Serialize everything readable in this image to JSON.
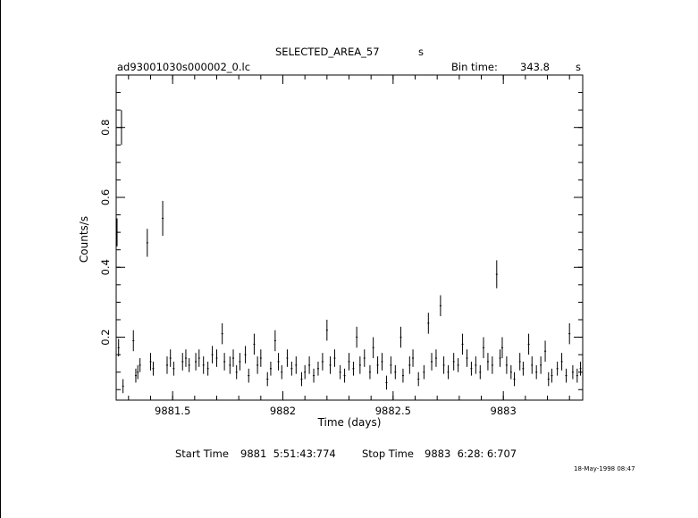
{
  "header": {
    "object": "SELECTED_AREA_57",
    "object_unit": "s",
    "filename": "ad93001030s000002_0.lc",
    "bin_label": "Bin time:",
    "bin_value": "343.8",
    "bin_unit": "s"
  },
  "footer": {
    "start_label": "Start Time",
    "start_value": "9881  5:51:43:774",
    "stop_label": "Stop Time",
    "stop_value": "9883  6:28: 6:707",
    "stamp": "18-May-1998 08:47"
  },
  "chart_data": {
    "type": "scatter",
    "xlabel": "Time (days)",
    "ylabel": "Counts/s",
    "xlim": [
      9881.244,
      9883.36
    ],
    "ylim": [
      0.02,
      0.95
    ],
    "x_ticks": [
      "9881.5",
      "9882",
      "9882.5",
      "9883"
    ],
    "y_ticks": [
      "0.2",
      "0.4",
      "0.6",
      "0.8"
    ],
    "grid": false,
    "series": [
      {
        "error_bars": true,
        "points": [
          [
            9881.248,
            0.5,
            0.04
          ],
          [
            9881.255,
            0.17,
            0.025
          ],
          [
            9881.268,
            0.8,
            0.05
          ],
          [
            9881.275,
            0.06,
            0.02
          ],
          [
            9881.322,
            0.19,
            0.03
          ],
          [
            9881.333,
            0.09,
            0.02
          ],
          [
            9881.342,
            0.1,
            0.02
          ],
          [
            9881.352,
            0.12,
            0.02
          ],
          [
            9881.385,
            0.47,
            0.04
          ],
          [
            9881.4,
            0.13,
            0.025
          ],
          [
            9881.412,
            0.11,
            0.02
          ],
          [
            9881.455,
            0.54,
            0.05
          ],
          [
            9881.475,
            0.12,
            0.025
          ],
          [
            9881.49,
            0.14,
            0.025
          ],
          [
            9881.505,
            0.11,
            0.02
          ],
          [
            9881.545,
            0.13,
            0.025
          ],
          [
            9881.56,
            0.14,
            0.025
          ],
          [
            9881.575,
            0.12,
            0.02
          ],
          [
            9881.605,
            0.13,
            0.025
          ],
          [
            9881.62,
            0.14,
            0.025
          ],
          [
            9881.64,
            0.12,
            0.025
          ],
          [
            9881.66,
            0.11,
            0.02
          ],
          [
            9881.68,
            0.15,
            0.025
          ],
          [
            9881.7,
            0.14,
            0.025
          ],
          [
            9881.725,
            0.21,
            0.03
          ],
          [
            9881.735,
            0.13,
            0.025
          ],
          [
            9881.76,
            0.12,
            0.025
          ],
          [
            9881.775,
            0.14,
            0.025
          ],
          [
            9881.79,
            0.1,
            0.02
          ],
          [
            9881.805,
            0.13,
            0.025
          ],
          [
            9881.83,
            0.15,
            0.025
          ],
          [
            9881.845,
            0.09,
            0.02
          ],
          [
            9881.87,
            0.18,
            0.03
          ],
          [
            9881.885,
            0.12,
            0.025
          ],
          [
            9881.9,
            0.14,
            0.025
          ],
          [
            9881.93,
            0.08,
            0.02
          ],
          [
            9881.945,
            0.11,
            0.02
          ],
          [
            9881.965,
            0.19,
            0.03
          ],
          [
            9881.98,
            0.13,
            0.025
          ],
          [
            9881.995,
            0.1,
            0.02
          ],
          [
            9882.02,
            0.14,
            0.025
          ],
          [
            9882.04,
            0.11,
            0.02
          ],
          [
            9882.06,
            0.12,
            0.025
          ],
          [
            9882.085,
            0.08,
            0.02
          ],
          [
            9882.1,
            0.1,
            0.02
          ],
          [
            9882.12,
            0.12,
            0.025
          ],
          [
            9882.14,
            0.09,
            0.02
          ],
          [
            9882.16,
            0.11,
            0.02
          ],
          [
            9882.18,
            0.13,
            0.025
          ],
          [
            9882.2,
            0.22,
            0.03
          ],
          [
            9882.215,
            0.12,
            0.025
          ],
          [
            9882.235,
            0.14,
            0.025
          ],
          [
            9882.26,
            0.1,
            0.02
          ],
          [
            9882.28,
            0.09,
            0.02
          ],
          [
            9882.3,
            0.13,
            0.025
          ],
          [
            9882.32,
            0.11,
            0.02
          ],
          [
            9882.335,
            0.2,
            0.03
          ],
          [
            9882.35,
            0.12,
            0.025
          ],
          [
            9882.37,
            0.14,
            0.025
          ],
          [
            9882.395,
            0.1,
            0.02
          ],
          [
            9882.41,
            0.17,
            0.03
          ],
          [
            9882.43,
            0.12,
            0.025
          ],
          [
            9882.45,
            0.13,
            0.025
          ],
          [
            9882.47,
            0.07,
            0.02
          ],
          [
            9882.49,
            0.12,
            0.025
          ],
          [
            9882.51,
            0.1,
            0.02
          ],
          [
            9882.535,
            0.2,
            0.03
          ],
          [
            9882.545,
            0.09,
            0.02
          ],
          [
            9882.575,
            0.12,
            0.025
          ],
          [
            9882.59,
            0.14,
            0.025
          ],
          [
            9882.615,
            0.08,
            0.02
          ],
          [
            9882.64,
            0.1,
            0.02
          ],
          [
            9882.66,
            0.24,
            0.03
          ],
          [
            9882.675,
            0.13,
            0.025
          ],
          [
            9882.695,
            0.14,
            0.025
          ],
          [
            9882.715,
            0.29,
            0.03
          ],
          [
            9882.73,
            0.12,
            0.025
          ],
          [
            9882.75,
            0.1,
            0.02
          ],
          [
            9882.775,
            0.13,
            0.025
          ],
          [
            9882.795,
            0.12,
            0.02
          ],
          [
            9882.815,
            0.18,
            0.03
          ],
          [
            9882.835,
            0.14,
            0.025
          ],
          [
            9882.855,
            0.11,
            0.02
          ],
          [
            9882.875,
            0.12,
            0.025
          ],
          [
            9882.895,
            0.1,
            0.02
          ],
          [
            9882.91,
            0.17,
            0.03
          ],
          [
            9882.93,
            0.13,
            0.025
          ],
          [
            9882.95,
            0.12,
            0.025
          ],
          [
            9882.97,
            0.38,
            0.04
          ],
          [
            9882.985,
            0.14,
            0.025
          ],
          [
            9882.995,
            0.17,
            0.03
          ],
          [
            9883.015,
            0.12,
            0.025
          ],
          [
            9883.035,
            0.1,
            0.02
          ],
          [
            9883.05,
            0.08,
            0.02
          ],
          [
            9883.075,
            0.13,
            0.025
          ],
          [
            9883.09,
            0.11,
            0.02
          ],
          [
            9883.115,
            0.18,
            0.03
          ],
          [
            9883.13,
            0.12,
            0.025
          ],
          [
            9883.15,
            0.1,
            0.02
          ],
          [
            9883.17,
            0.12,
            0.025
          ],
          [
            9883.19,
            0.16,
            0.03
          ],
          [
            9883.205,
            0.08,
            0.02
          ],
          [
            9883.22,
            0.09,
            0.02
          ],
          [
            9883.245,
            0.11,
            0.02
          ],
          [
            9883.265,
            0.13,
            0.025
          ],
          [
            9883.285,
            0.09,
            0.02
          ],
          [
            9883.3,
            0.21,
            0.03
          ],
          [
            9883.315,
            0.1,
            0.02
          ],
          [
            9883.335,
            0.09,
            0.02
          ],
          [
            9883.35,
            0.11,
            0.02
          ]
        ]
      }
    ]
  }
}
